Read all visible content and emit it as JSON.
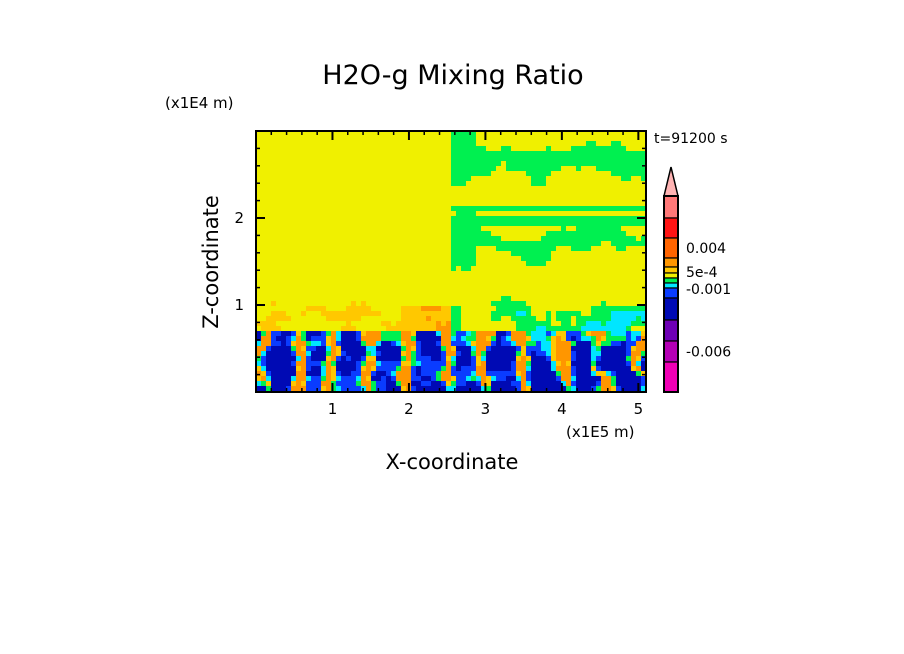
{
  "chart_data": {
    "type": "heatmap",
    "subtype": "filled-contour",
    "title": "H2O-g Mixing Ratio",
    "xlabel": "X-coordinate",
    "ylabel": "Z-coordinate",
    "x_scale_label": "(x1E5 m)",
    "y_scale_label": "(x1E4 m)",
    "time_label": "t=91200 s",
    "xlim": [
      0,
      5.1
    ],
    "ylim": [
      0,
      3.0
    ],
    "xticks": [
      {
        "v": 1,
        "label": "1"
      },
      {
        "v": 2,
        "label": "2"
      },
      {
        "v": 3,
        "label": "3"
      },
      {
        "v": 4,
        "label": "4"
      },
      {
        "v": 5,
        "label": "5"
      }
    ],
    "yticks": [
      {
        "v": 1,
        "label": "1"
      },
      {
        "v": 2,
        "label": "2"
      }
    ],
    "colorbar": {
      "extend": "max",
      "arrow_color": "#ffb4b4",
      "segments_top_to_bottom": [
        "#ff7878",
        "#ff1414",
        "#ff6400",
        "#ff9600",
        "#ffc800",
        "#f0f000",
        "#00f050",
        "#00e6ff",
        "#0a3cff",
        "#000ab4",
        "#6e00b4",
        "#b400b4",
        "#f000b4"
      ],
      "labels": [
        {
          "label": "0.004",
          "segment": 2
        },
        {
          "label": "5e-4",
          "segment": 5
        },
        {
          "label": "-0.001",
          "segment": 7
        },
        {
          "label": "-0.006",
          "segment": 11
        }
      ]
    },
    "field_colors": {
      "yellow": "#f0f000",
      "light_orange": "#ffc800",
      "orange": "#ff9600",
      "dark_orange": "#ff6400",
      "green": "#00f050",
      "cyan": "#00e6ff",
      "blue": "#0a3cff",
      "navy": "#000ab4"
    }
  }
}
